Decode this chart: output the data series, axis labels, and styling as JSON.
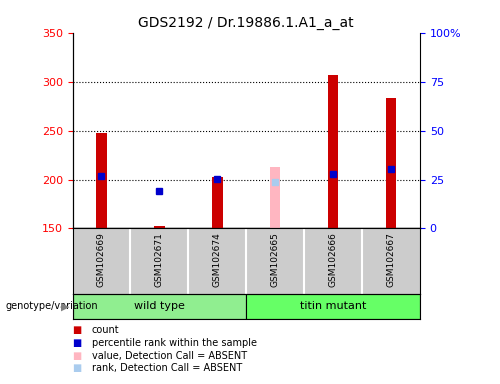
{
  "title": "GDS2192 / Dr.19886.1.A1_a_at",
  "samples": [
    "GSM102669",
    "GSM102671",
    "GSM102674",
    "GSM102665",
    "GSM102666",
    "GSM102667"
  ],
  "count_values": [
    248,
    153,
    203,
    null,
    307,
    283
  ],
  "percentile_values": [
    204,
    188,
    201,
    null,
    206,
    211
  ],
  "absent_value": [
    null,
    null,
    null,
    213,
    null,
    null
  ],
  "absent_rank": [
    null,
    null,
    null,
    197,
    null,
    null
  ],
  "ymin": 150,
  "ymax": 350,
  "right_yticks": [
    0,
    25,
    50,
    75,
    100
  ],
  "right_yticklabels": [
    "0",
    "25",
    "50",
    "75",
    "100%"
  ],
  "left_yticks": [
    150,
    200,
    250,
    300,
    350
  ],
  "hgrid_values": [
    200,
    250,
    300
  ],
  "bar_color": "#CC0000",
  "percentile_color": "#0000CC",
  "absent_bar_color": "#FFB6C1",
  "absent_rank_color": "#AACCEE",
  "groups_info": [
    {
      "name": "wild type",
      "start": 0,
      "end": 3,
      "color": "#90EE90"
    },
    {
      "name": "titin mutant",
      "start": 3,
      "end": 6,
      "color": "#66FF66"
    }
  ],
  "legend_items": [
    {
      "label": "count",
      "color": "#CC0000"
    },
    {
      "label": "percentile rank within the sample",
      "color": "#0000CC"
    },
    {
      "label": "value, Detection Call = ABSENT",
      "color": "#FFB6C1"
    },
    {
      "label": "rank, Detection Call = ABSENT",
      "color": "#AACCEE"
    }
  ],
  "genotype_label": "genotype/variation",
  "background_color": "#FFFFFF",
  "sample_bg_color": "#CCCCCC",
  "bar_width": 0.18,
  "title_fontsize": 10,
  "tick_fontsize": 8,
  "label_fontsize": 8
}
